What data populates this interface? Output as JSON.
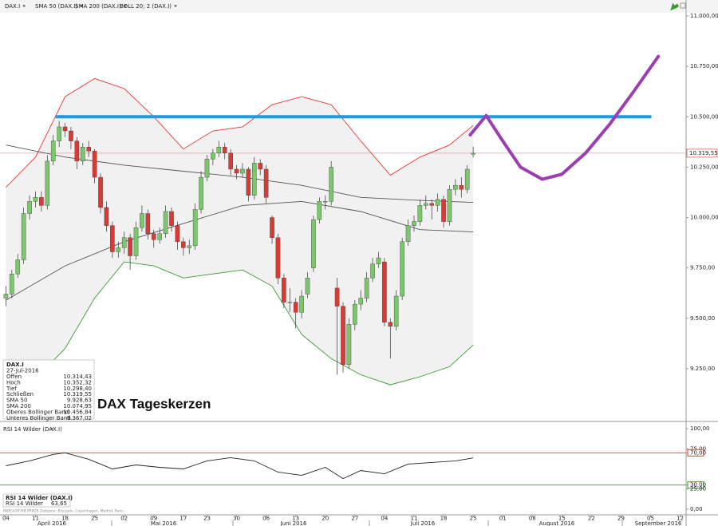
{
  "chart_data": {
    "type": "candlestick",
    "title": "DAX Tageskerzen",
    "toolbar": [
      "DAX.I",
      "SMA 50 (DAX.I)",
      "SMA 200 (DAX.I)",
      "BOLL 20; 2 (DAX.I)"
    ],
    "up_color": "#7bc86c",
    "down_color": "#d83a34",
    "xlim": [
      -1,
      115
    ],
    "ylim": [
      9000,
      11040
    ],
    "yticks": [
      {
        "value": 11000,
        "label": "11.000,00"
      },
      {
        "value": 10750,
        "label": "10.750,00"
      },
      {
        "value": 10500,
        "label": "10.500,00"
      },
      {
        "value": 10250,
        "label": "10.250,00"
      },
      {
        "value": 10000,
        "label": "10.000,00"
      },
      {
        "value": 9750,
        "label": "9.750,00"
      },
      {
        "value": 9500,
        "label": "9.500,00"
      },
      {
        "value": 9250,
        "label": "9.250,00"
      }
    ],
    "xticks": [
      {
        "value": 0,
        "label": "04"
      },
      {
        "value": 5,
        "label": "11"
      },
      {
        "value": 10,
        "label": "18"
      },
      {
        "value": 15,
        "label": "25"
      },
      {
        "value": 20,
        "label": "02"
      },
      {
        "value": 25,
        "label": "09"
      },
      {
        "value": 30,
        "label": "17"
      },
      {
        "value": 34,
        "label": "23"
      },
      {
        "value": 39,
        "label": "30"
      },
      {
        "value": 44,
        "label": "06"
      },
      {
        "value": 49,
        "label": "13"
      },
      {
        "value": 54,
        "label": "20"
      },
      {
        "value": 59,
        "label": "27"
      },
      {
        "value": 64,
        "label": "04"
      },
      {
        "value": 69,
        "label": "11"
      },
      {
        "value": 74,
        "label": "18"
      },
      {
        "value": 79,
        "label": "25"
      },
      {
        "value": 84,
        "label": "01"
      },
      {
        "value": 89,
        "label": "08"
      },
      {
        "value": 94,
        "label": "15"
      },
      {
        "value": 99,
        "label": "22"
      },
      {
        "value": 104,
        "label": "29"
      },
      {
        "value": 109,
        "label": "05"
      },
      {
        "value": 114,
        "label": "12"
      }
    ],
    "months": [
      "April 2016",
      "Mai 2016",
      "Juni 2016",
      "Juli 2016",
      "August 2016",
      "September 2016"
    ],
    "open": [
      9600,
      9620,
      9720,
      9790,
      10020,
      10080,
      10100,
      10060,
      10280,
      10380,
      10450,
      10430,
      10380,
      10280,
      10350,
      10330,
      10200,
      10050,
      9960,
      9830,
      9850,
      9900,
      9810,
      9950,
      10020,
      9920,
      9890,
      9920,
      10030,
      9960,
      9880,
      9850,
      9860,
      10040,
      10200,
      10290,
      10320,
      10350,
      10320,
      10240,
      10220,
      10240,
      10110,
      10270,
      10240,
      10000,
      9900,
      9700,
      9580,
      9580,
      9530,
      9620,
      9750,
      9990,
      10080,
      10080,
      9650,
      9560,
      9270,
      9470,
      9570,
      9600,
      9700,
      9770,
      9780,
      9480,
      9460,
      9610,
      9880,
      9960,
      9980,
      10060,
      10070,
      10060,
      10090,
      9980,
      10140,
      10160,
      10140,
      10314.43
    ],
    "high": [
      9660,
      9740,
      9820,
      10050,
      10110,
      10130,
      10130,
      10310,
      10410,
      10480,
      10470,
      10450,
      10400,
      10370,
      10380,
      10340,
      10220,
      10080,
      9980,
      9880,
      9930,
      9920,
      9980,
      10060,
      10040,
      9940,
      9950,
      10060,
      10050,
      9980,
      9900,
      9890,
      10070,
      10230,
      10310,
      10340,
      10380,
      10370,
      10340,
      10260,
      10270,
      10250,
      10300,
      10290,
      10260,
      10010,
      9920,
      9720,
      9650,
      9600,
      9640,
      9730,
      10010,
      10100,
      10110,
      10280,
      9700,
      9580,
      9500,
      9590,
      9640,
      9730,
      9800,
      9830,
      9800,
      9500,
      9640,
      9900,
      9990,
      10010,
      10090,
      10110,
      10090,
      10120,
      10110,
      10160,
      10190,
      10200,
      10260,
      10352.32
    ],
    "low": [
      9560,
      9600,
      9700,
      9770,
      9990,
      10050,
      10030,
      10040,
      10260,
      10350,
      10400,
      10340,
      10240,
      10260,
      10300,
      10170,
      10020,
      9930,
      9800,
      9800,
      9820,
      9740,
      9790,
      9930,
      9890,
      9850,
      9870,
      9900,
      9930,
      9840,
      9810,
      9820,
      9840,
      10020,
      10180,
      10260,
      10300,
      10290,
      10210,
      10190,
      10200,
      10080,
      10090,
      10210,
      10070,
      9870,
      9670,
      9550,
      9530,
      9450,
      9500,
      9600,
      9730,
      9970,
      10040,
      10060,
      9220,
      9230,
      9250,
      9440,
      9540,
      9580,
      9680,
      9750,
      9460,
      9300,
      9440,
      9590,
      9860,
      9930,
      9960,
      10040,
      9990,
      10030,
      9950,
      9960,
      10110,
      10100,
      10120,
      10298.4
    ],
    "close": [
      9620,
      9720,
      9790,
      10020,
      10080,
      10100,
      10060,
      10280,
      10380,
      10450,
      10430,
      10380,
      10280,
      10350,
      10330,
      10200,
      10050,
      9960,
      9830,
      9850,
      9900,
      9810,
      9950,
      10020,
      9920,
      9890,
      9920,
      10030,
      9960,
      9880,
      9850,
      9860,
      10040,
      10200,
      10290,
      10320,
      10350,
      10320,
      10240,
      10220,
      10240,
      10110,
      10270,
      10240,
      10100,
      9900,
      9700,
      9580,
      9580,
      9530,
      9610,
      9700,
      9990,
      10080,
      10080,
      10250,
      9560,
      9270,
      9470,
      9570,
      9600,
      9700,
      9770,
      9800,
      9480,
      9460,
      9610,
      9880,
      9960,
      9980,
      10060,
      10070,
      10060,
      10090,
      9980,
      10140,
      10160,
      10140,
      10240,
      10319.55
    ],
    "last_price": {
      "value": 10319.55,
      "label": "10.319,55"
    },
    "series": [
      {
        "color": "#e53935",
        "x": [
          0,
          5,
          10,
          15,
          20,
          25,
          30,
          35,
          40,
          45,
          50,
          55,
          60,
          65,
          70,
          75,
          79
        ],
        "values": [
          10150,
          10300,
          10600,
          10690,
          10640,
          10500,
          10340,
          10430,
          10450,
          10560,
          10600,
          10560,
          10380,
          10210,
          10300,
          10360,
          10456.84
        ]
      },
      {
        "color": "#3a9a32",
        "x": [
          0,
          5,
          10,
          15,
          20,
          25,
          30,
          35,
          40,
          45,
          50,
          55,
          60,
          65,
          70,
          75,
          79
        ],
        "values": [
          9250,
          9200,
          9350,
          9600,
          9780,
          9760,
          9700,
          9720,
          9740,
          9660,
          9420,
          9300,
          9220,
          9170,
          9210,
          9260,
          9367.02
        ]
      },
      {
        "color": "#555555",
        "x": [
          0,
          10,
          20,
          30,
          40,
          50,
          60,
          70,
          79
        ],
        "values": [
          10360,
          10300,
          10260,
          10230,
          10200,
          10160,
          10100,
          10085,
          10074.95
        ]
      },
      {
        "color": "#555555",
        "x": [
          0,
          10,
          20,
          30,
          40,
          50,
          60,
          70,
          79
        ],
        "values": [
          9590,
          9760,
          9880,
          9970,
          10060,
          10080,
          10030,
          9940,
          9928.63
        ]
      }
    ],
    "drawings": [
      {
        "color": "#1e9be0",
        "x": [
          8.6,
          108.9
        ],
        "values": [
          10500,
          10500
        ]
      },
      {
        "color": "#9b3fb0",
        "x": [
          78.5,
          81.2,
          84,
          87,
          90.7,
          94,
          98,
          102,
          106,
          110.3
        ],
        "values": [
          10410,
          10506,
          10380,
          10250,
          10190,
          10215,
          10320,
          10460,
          10620,
          10800
        ]
      }
    ],
    "info_panel": {
      "title": "DAX.I",
      "date": "27-Jul-2016",
      "rows": [
        {
          "label": "Offen",
          "value": "10.314,43"
        },
        {
          "label": "Hoch",
          "value": "10.352,32"
        },
        {
          "label": "Tief",
          "value": "10.298,40"
        },
        {
          "label": "Schließen",
          "value": "10.319,55"
        },
        {
          "label": "SMA 50",
          "value": "9.928,63"
        },
        {
          "label": "SMA 200",
          "value": "10.074,95"
        },
        {
          "label": "Oberes Bollinger Band",
          "value": "10.456,84",
          "color": "#e53935"
        },
        {
          "label": "Unteres Bollinger Band",
          "value": "9.367,02",
          "color": "#3a9a32"
        }
      ]
    },
    "rsi": {
      "title": "RSI 14 Wilder (DAX.I)",
      "legend_title": "RSI 14 Wilder (DAX.I)",
      "legend_name": "RSI 14 Wilder",
      "legend_value": "63,65",
      "color": "#222222",
      "ylim": [
        -7,
        107
      ],
      "yticks": [
        {
          "value": 100,
          "label": "100,00"
        },
        {
          "value": 75,
          "label": "75,00"
        },
        {
          "value": 70,
          "label": "70,00"
        },
        {
          "value": 30,
          "label": "30,00"
        },
        {
          "value": 25,
          "label": "25,00"
        },
        {
          "value": 0,
          "label": "0,00"
        }
      ],
      "levels": [
        {
          "value": 70,
          "color": "#e53935"
        },
        {
          "value": 30,
          "color": "#3a9a32"
        }
      ],
      "x": [
        0,
        4,
        8,
        10,
        14,
        18,
        22,
        26,
        30,
        34,
        38,
        42,
        46,
        50,
        54,
        57,
        60,
        64,
        68,
        72,
        76,
        79
      ],
      "values": [
        54,
        60,
        68,
        70,
        62,
        50,
        55,
        52,
        50,
        60,
        64,
        60,
        46,
        42,
        52,
        38,
        48,
        44,
        56,
        58,
        60,
        63.65
      ]
    },
    "footnote": "INDEX/AT/08 PRIIDS   Zeitzone: Brussels, Copenhagen, Madrid, Paris"
  }
}
